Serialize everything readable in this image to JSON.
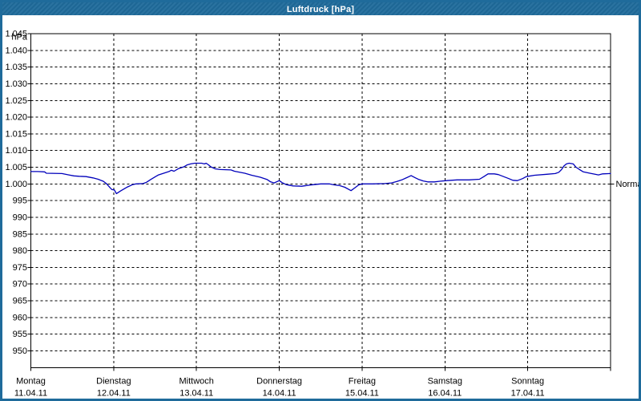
{
  "window": {
    "title": "Luftdruck [hPa]"
  },
  "colors": {
    "titlebar": "#1f6b9b",
    "window_border": "#1f6b9b",
    "line": "#0000bb",
    "grid": "#000000",
    "background": "#ffffff",
    "text": "#000000"
  },
  "chart_data": {
    "type": "line",
    "title": "Luftdruck [hPa]",
    "unit_label": "hPa",
    "ylim": [
      950,
      1050
    ],
    "y_step": 5,
    "grid": true,
    "legend": "none",
    "y_tick_labels": [
      "1.045",
      "1.040",
      "1.035",
      "1.030",
      "1.025",
      "1.020",
      "1.015",
      "1.010",
      "1.005",
      "1.000",
      "995",
      "990",
      "985",
      "980",
      "975",
      "970",
      "965",
      "960",
      "955",
      "950"
    ],
    "days": [
      {
        "name": "Montag",
        "date": "11.04.11"
      },
      {
        "name": "Dienstag",
        "date": "12.04.11"
      },
      {
        "name": "Mittwoch",
        "date": "13.04.11"
      },
      {
        "name": "Donnerstag",
        "date": "14.04.11"
      },
      {
        "name": "Freitag",
        "date": "15.04.11"
      },
      {
        "name": "Samstag",
        "date": "16.04.11"
      },
      {
        "name": "Sonntag",
        "date": "17.04.11"
      }
    ],
    "normal": {
      "label": "Normal",
      "value": 1005
    },
    "x_range_hours": [
      0,
      168
    ],
    "series": [
      {
        "name": "Luftdruck",
        "color": "#0000bb",
        "points": [
          [
            0,
            1008.7
          ],
          [
            2,
            1008.7
          ],
          [
            4,
            1008.6
          ],
          [
            4.5,
            1008.2
          ],
          [
            9,
            1008.1
          ],
          [
            11,
            1007.7
          ],
          [
            12.5,
            1007.4
          ],
          [
            14,
            1007.3
          ],
          [
            16,
            1007.2
          ],
          [
            18,
            1006.8
          ],
          [
            19.5,
            1006.4
          ],
          [
            21,
            1005.8
          ],
          [
            22,
            1005.0
          ],
          [
            22.5,
            1004.4
          ],
          [
            23,
            1003.8
          ],
          [
            23.5,
            1003.3
          ],
          [
            24.2,
            1003.2
          ],
          [
            24.8,
            1002.1
          ],
          [
            26,
            1002.9
          ],
          [
            27,
            1003.5
          ],
          [
            28,
            1004.1
          ],
          [
            29.5,
            1004.8
          ],
          [
            30.5,
            1005.0
          ],
          [
            32.5,
            1005.1
          ],
          [
            33.5,
            1005.5
          ],
          [
            34.7,
            1006.3
          ],
          [
            36,
            1007.1
          ],
          [
            37,
            1007.7
          ],
          [
            38.5,
            1008.2
          ],
          [
            40,
            1008.7
          ],
          [
            40.7,
            1009.1
          ],
          [
            41.5,
            1008.8
          ],
          [
            42.8,
            1009.6
          ],
          [
            44.5,
            1010.2
          ],
          [
            45.3,
            1010.7
          ],
          [
            46.3,
            1011.0
          ],
          [
            47.5,
            1011.2
          ],
          [
            49.5,
            1011.2
          ],
          [
            50.3,
            1011.0
          ],
          [
            50.8,
            1011.2
          ],
          [
            51.5,
            1010.7
          ],
          [
            52.2,
            1010.1
          ],
          [
            53.5,
            1009.5
          ],
          [
            55,
            1009.3
          ],
          [
            58,
            1009.2
          ],
          [
            59,
            1008.8
          ],
          [
            62,
            1008.2
          ],
          [
            64,
            1007.6
          ],
          [
            66.5,
            1007.0
          ],
          [
            68.5,
            1006.3
          ],
          [
            69.5,
            1005.6
          ],
          [
            70.5,
            1005.3
          ],
          [
            72,
            1006.0
          ],
          [
            72.8,
            1005.4
          ],
          [
            74,
            1004.8
          ],
          [
            76,
            1004.4
          ],
          [
            78.5,
            1004.3
          ],
          [
            80.5,
            1004.6
          ],
          [
            82,
            1004.8
          ],
          [
            84,
            1005.0
          ],
          [
            86.5,
            1005.0
          ],
          [
            88,
            1004.7
          ],
          [
            89.5,
            1004.5
          ],
          [
            91,
            1004.0
          ],
          [
            92.8,
            1003.0
          ],
          [
            94,
            1003.9
          ],
          [
            95,
            1004.7
          ],
          [
            96,
            1005.0
          ],
          [
            99,
            1005.0
          ],
          [
            102.5,
            1005.1
          ],
          [
            104.5,
            1005.3
          ],
          [
            106,
            1005.7
          ],
          [
            107.5,
            1006.2
          ],
          [
            109,
            1006.9
          ],
          [
            110.2,
            1007.5
          ],
          [
            111.3,
            1006.9
          ],
          [
            112.5,
            1006.3
          ],
          [
            113.7,
            1005.9
          ],
          [
            115,
            1005.6
          ],
          [
            117,
            1005.6
          ],
          [
            118.5,
            1005.8
          ],
          [
            120.5,
            1006.0
          ],
          [
            123.5,
            1006.2
          ],
          [
            127,
            1006.2
          ],
          [
            130,
            1006.4
          ],
          [
            131.3,
            1007.2
          ],
          [
            132.5,
            1008.0
          ],
          [
            134.3,
            1008.0
          ],
          [
            135.5,
            1007.8
          ],
          [
            137,
            1007.2
          ],
          [
            138.5,
            1006.6
          ],
          [
            139.7,
            1006.1
          ],
          [
            141,
            1006.0
          ],
          [
            142.5,
            1006.6
          ],
          [
            143.6,
            1007.2
          ],
          [
            146,
            1007.6
          ],
          [
            149.5,
            1007.9
          ],
          [
            152,
            1008.1
          ],
          [
            153,
            1008.5
          ],
          [
            153.8,
            1009.3
          ],
          [
            154.5,
            1010.4
          ],
          [
            155.2,
            1011.0
          ],
          [
            156,
            1011.2
          ],
          [
            157.2,
            1011.0
          ],
          [
            158,
            1010.0
          ],
          [
            159.2,
            1009.2
          ],
          [
            160.1,
            1008.6
          ],
          [
            162,
            1008.2
          ],
          [
            163.5,
            1007.9
          ],
          [
            164.5,
            1007.7
          ],
          [
            165.7,
            1008.0
          ],
          [
            168,
            1008.1
          ]
        ]
      }
    ]
  }
}
